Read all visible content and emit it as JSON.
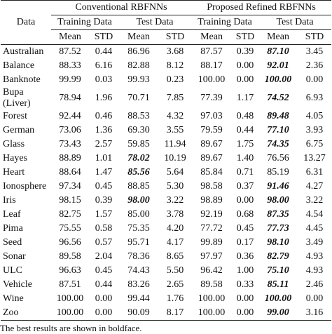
{
  "table": {
    "group_headers": [
      "Conventional RBFNNs",
      "Proposed Refined RBFNNs"
    ],
    "first_header": "Data",
    "set_headers": [
      "Training Data",
      "Test Data",
      "Training Data",
      "Test Data"
    ],
    "stat_headers": [
      "Mean",
      "STD",
      "Mean",
      "STD",
      "Mean",
      "STD",
      "Mean",
      "STD"
    ],
    "rows": [
      [
        "Australian",
        "87.52",
        "0.44",
        "86.96",
        "3.68",
        "87.57",
        "0.39",
        "87.10",
        "3.45"
      ],
      [
        "Balance",
        "88.33",
        "6.16",
        "82.88",
        "8.12",
        "88.17",
        "0.00",
        "92.01",
        "2.36"
      ],
      [
        "Banknote",
        "99.99",
        "0.03",
        "99.93",
        "0.23",
        "100.00",
        "0.00",
        "100.00",
        "0.00"
      ],
      [
        "Bupa (Liver)",
        "78.94",
        "1.96",
        "70.71",
        "7.85",
        "77.39",
        "1.17",
        "74.52",
        "6.93"
      ],
      [
        "Forest",
        "92.44",
        "0.46",
        "88.53",
        "4.32",
        "97.03",
        "0.48",
        "89.48",
        "4.05"
      ],
      [
        "German",
        "73.06",
        "1.36",
        "69.30",
        "3.55",
        "79.59",
        "0.44",
        "77.10",
        "3.93"
      ],
      [
        "Glass",
        "73.43",
        "2.57",
        "59.85",
        "11.94",
        "89.67",
        "1.75",
        "74.35",
        "6.75"
      ],
      [
        "Hayes",
        "88.89",
        "1.01",
        "78.02",
        "10.19",
        "89.67",
        "1.40",
        "76.56",
        "13.27"
      ],
      [
        "Heart",
        "88.64",
        "1.47",
        "85.56",
        "5.64",
        "85.84",
        "0.71",
        "85.19",
        "6.31"
      ],
      [
        "Ionosphere",
        "97.34",
        "0.45",
        "88.85",
        "5.30",
        "98.58",
        "0.37",
        "91.46",
        "4.27"
      ],
      [
        "Iris",
        "98.15",
        "0.39",
        "98.00",
        "3.22",
        "98.89",
        "0.00",
        "98.00",
        "3.22"
      ],
      [
        "Leaf",
        "82.75",
        "1.57",
        "85.00",
        "3.78",
        "92.19",
        "0.68",
        "87.35",
        "4.54"
      ],
      [
        "Pima",
        "75.55",
        "0.58",
        "75.35",
        "4.20",
        "77.72",
        "0.45",
        "77.73",
        "4.45"
      ],
      [
        "Seed",
        "96.56",
        "0.57",
        "95.71",
        "4.17",
        "99.89",
        "0.17",
        "98.10",
        "3.49"
      ],
      [
        "Sonar",
        "89.58",
        "2.04",
        "78.36",
        "8.65",
        "97.97",
        "0.36",
        "82.79",
        "4.93"
      ],
      [
        "ULC",
        "96.63",
        "0.45",
        "74.43",
        "5.50",
        "96.42",
        "1.00",
        "75.10",
        "4.93"
      ],
      [
        "Vehicle",
        "87.51",
        "0.44",
        "83.26",
        "2.65",
        "89.58",
        "0.33",
        "85.11",
        "2.46"
      ],
      [
        "Wine",
        "100.00",
        "0.00",
        "99.44",
        "1.76",
        "100.00",
        "0.00",
        "100.00",
        "0.00"
      ],
      [
        "Zoo",
        "100.00",
        "0.00",
        "90.09",
        "8.17",
        "100.00",
        "0.00",
        "99.00",
        "3.16"
      ]
    ],
    "bold_cells": [
      [
        0,
        7
      ],
      [
        1,
        7
      ],
      [
        2,
        7
      ],
      [
        3,
        7
      ],
      [
        4,
        7
      ],
      [
        5,
        7
      ],
      [
        6,
        7
      ],
      [
        7,
        3
      ],
      [
        8,
        3
      ],
      [
        9,
        7
      ],
      [
        10,
        3
      ],
      [
        10,
        7
      ],
      [
        11,
        7
      ],
      [
        12,
        7
      ],
      [
        13,
        7
      ],
      [
        14,
        7
      ],
      [
        15,
        7
      ],
      [
        16,
        7
      ],
      [
        17,
        7
      ],
      [
        18,
        7
      ]
    ],
    "footnote": "The best results are shown in boldface."
  }
}
